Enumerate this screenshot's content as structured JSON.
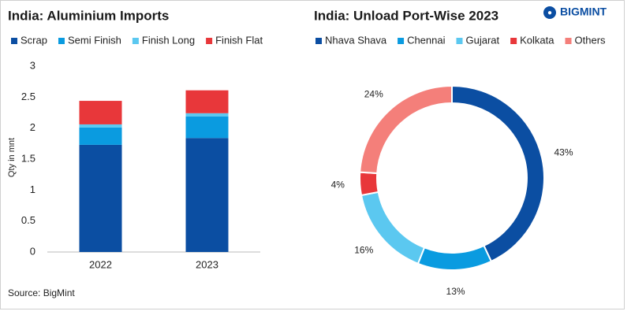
{
  "chart_data": [
    {
      "type": "stacked-bar",
      "title": "India: Aluminium Imports",
      "y_label": "Qty in mnt",
      "categories": [
        "2022",
        "2023"
      ],
      "series": [
        {
          "name": "Scrap",
          "color": "#0b4ea2",
          "values": [
            1.73,
            1.84
          ]
        },
        {
          "name": "Semi Finish",
          "color": "#0a9be0",
          "values": [
            0.28,
            0.35
          ]
        },
        {
          "name": "Finish Long",
          "color": "#5bc8f0",
          "values": [
            0.05,
            0.05
          ]
        },
        {
          "name": "Finish Flat",
          "color": "#e8373a",
          "values": [
            0.38,
            0.37
          ]
        }
      ],
      "ylim": [
        0,
        3
      ],
      "yticks": [
        0,
        0.5,
        1,
        1.5,
        2,
        2.5,
        3
      ],
      "grid": false
    },
    {
      "type": "donut",
      "title": "India: Unload Port-Wise 2023",
      "categories": [
        "Nhava Shava",
        "Chennai",
        "Gujarat",
        "Kolkata",
        "Others"
      ],
      "colors": [
        "#0b4ea2",
        "#0a9be0",
        "#5bc8f0",
        "#e8373a",
        "#f47f7a"
      ],
      "values": [
        43,
        13,
        16,
        4,
        24
      ],
      "value_labels": [
        "43%",
        "13%",
        "16%",
        "4%",
        "24%"
      ]
    }
  ],
  "source": "Source: BigMint",
  "logo": "BIGMINT"
}
